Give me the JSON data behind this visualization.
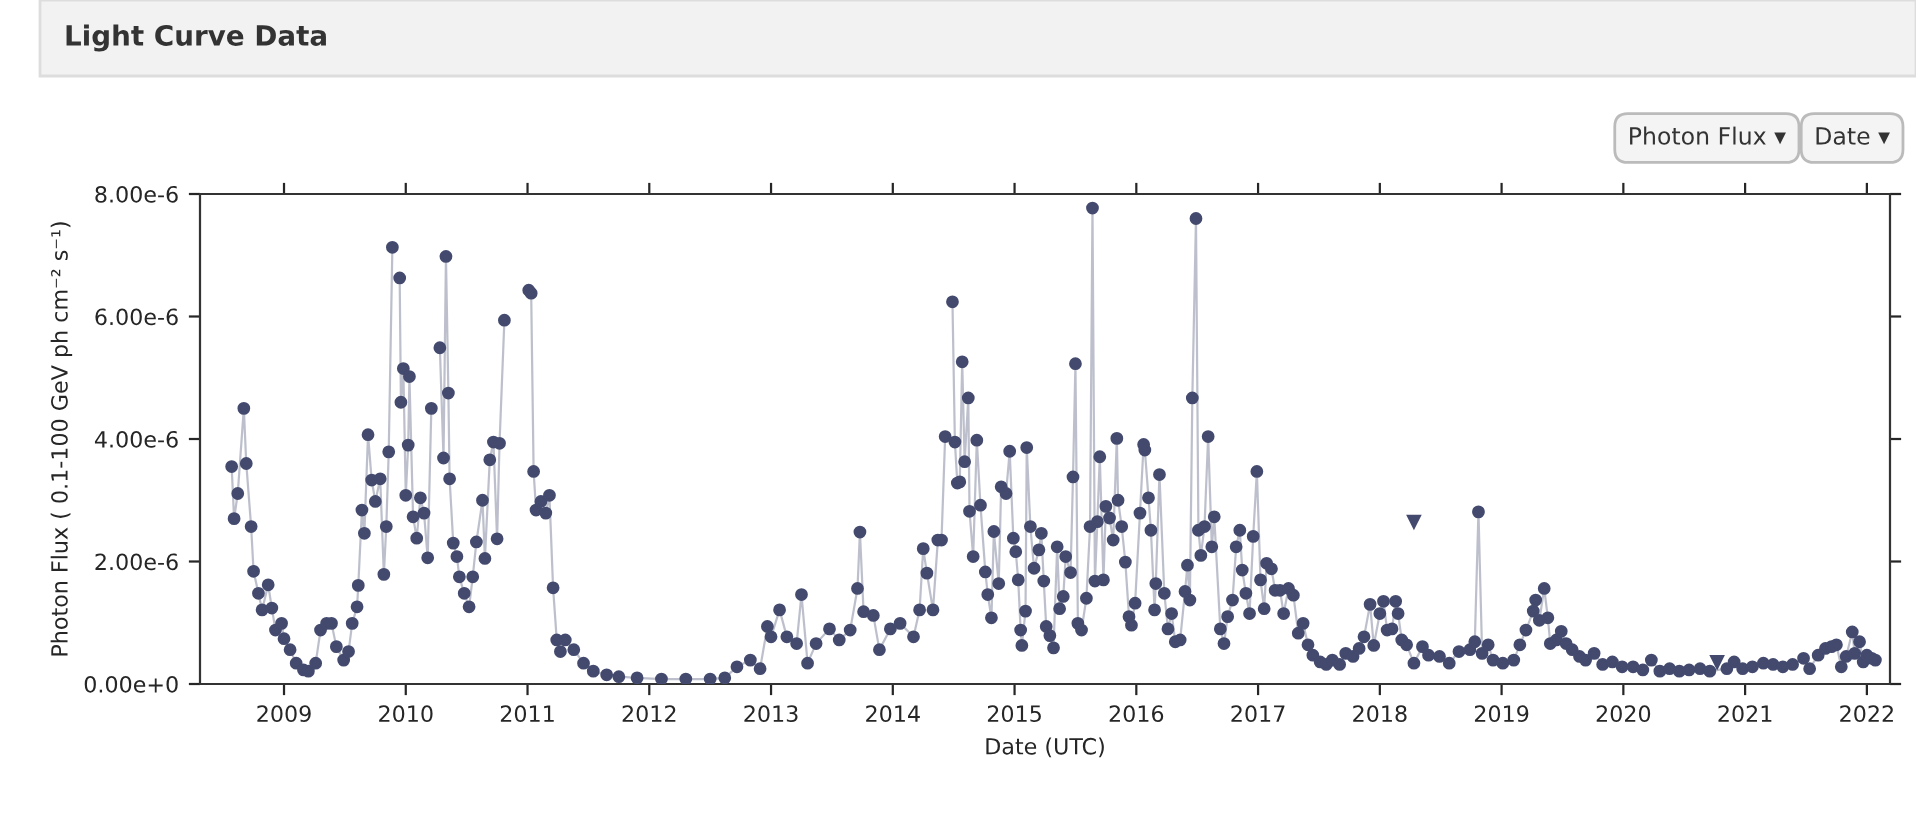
{
  "chart_data": {
    "type": "line",
    "title": "Light Curve Data",
    "xlabel": "Date (UTC)",
    "ylabel": "Photon Flux ( 0.1-100 GeV ph cm⁻² s⁻¹)",
    "annotations": [
      "Photon Flux ▾",
      "Date ▾"
    ],
    "xlim": [
      2008.31,
      2022.19
    ],
    "xticks": [
      2009,
      2010,
      2011,
      2012,
      2013,
      2014,
      2015,
      2016,
      2017,
      2018,
      2019,
      2020,
      2021,
      2022
    ],
    "ylim": [
      0,
      8e-06
    ],
    "yticks": [
      {
        "value": 0,
        "label": "0.00e+0"
      },
      {
        "value": 2e-06,
        "label": "2.00e-6"
      },
      {
        "value": 4e-06,
        "label": "4.00e-6"
      },
      {
        "value": 6e-06,
        "label": "6.00e-6"
      },
      {
        "value": 8e-06,
        "label": "8.00e-6"
      }
    ],
    "grid": false,
    "legend": false,
    "marker": "circle",
    "line_style": "solid",
    "series": [
      {
        "color": "#434a6e",
        "x": [
          2008.57,
          2008.59,
          2008.62,
          2008.67,
          2008.69,
          2008.73,
          2008.75,
          2008.79,
          2008.82,
          2008.87,
          2008.9,
          2008.93,
          2008.98,
          2009.0,
          2009.05,
          2009.1,
          2009.16,
          2009.2,
          2009.26,
          2009.3,
          2009.35,
          2009.39,
          2009.43,
          2009.49,
          2009.53,
          2009.56,
          2009.6,
          2009.61,
          2009.64,
          2009.66,
          2009.69,
          2009.72,
          2009.75,
          2009.79,
          2009.82,
          2009.84,
          2009.86,
          2009.89,
          2009.92,
          2009.95,
          2009.96,
          2009.98,
          2010.0,
          2010.02,
          2010.03,
          2010.06,
          2010.09,
          2010.12,
          2010.15,
          2010.18,
          2010.21,
          2010.24,
          2010.28,
          2010.31,
          2010.33,
          2010.35,
          2010.36,
          2010.39,
          2010.42,
          2010.44,
          2010.48,
          2010.52,
          2010.55,
          2010.58,
          2010.63,
          2010.65,
          2010.69,
          2010.72,
          2010.75,
          2010.77,
          2010.81,
          2010.83,
          2011.01,
          2011.03,
          2011.05,
          2011.07,
          2011.11,
          2011.15,
          2011.18,
          2011.21,
          2011.24,
          2011.27,
          2011.31,
          2011.38,
          2011.46,
          2011.54,
          2011.65,
          2011.75,
          2011.9,
          2012.1,
          2012.3,
          2012.5,
          2012.62,
          2012.72,
          2012.83,
          2012.91,
          2012.97,
          2013.0,
          2013.07,
          2013.13,
          2013.21,
          2013.25,
          2013.3,
          2013.37,
          2013.48,
          2013.56,
          2013.65,
          2013.71,
          2013.73,
          2013.76,
          2013.84,
          2013.89,
          2013.98,
          2014.06,
          2014.17,
          2014.22,
          2014.25,
          2014.28,
          2014.33,
          2014.37,
          2014.4,
          2014.43,
          2014.45,
          2014.49,
          2014.51,
          2014.53,
          2014.55,
          2014.57,
          2014.59,
          2014.62,
          2014.63,
          2014.66,
          2014.69,
          2014.72,
          2014.76,
          2014.78,
          2014.81,
          2014.83,
          2014.87,
          2014.89,
          2014.93,
          2014.96,
          2014.99,
          2015.01,
          2015.03,
          2015.05,
          2015.06,
          2015.09,
          2015.1,
          2015.13,
          2015.16,
          2015.2,
          2015.22,
          2015.24,
          2015.26,
          2015.29,
          2015.32,
          2015.35,
          2015.37,
          2015.4,
          2015.42,
          2015.46,
          2015.48,
          2015.5,
          2015.52,
          2015.55,
          2015.59,
          2015.62,
          2015.64,
          2015.66,
          2015.68,
          2015.7,
          2015.73,
          2015.75,
          2015.78,
          2015.81,
          2015.84,
          2015.85,
          2015.88,
          2015.91,
          2015.94,
          2015.96,
          2015.99,
          2016.03,
          2016.06,
          2016.07,
          2016.1,
          2016.12,
          2016.15,
          2016.16,
          2016.19,
          2016.23,
          2016.26,
          2016.29,
          2016.32,
          2016.36,
          2016.4,
          2016.42,
          2016.44,
          2016.46,
          2016.49,
          2016.51,
          2016.53,
          2016.56,
          2016.59,
          2016.62,
          2016.64,
          2016.69,
          2016.72,
          2016.75,
          2016.79,
          2016.82,
          2016.85,
          2016.87,
          2016.9,
          2016.93,
          2016.96,
          2016.99,
          2017.02,
          2017.05,
          2017.07,
          2017.11,
          2017.14,
          2017.18,
          2017.21,
          2017.25,
          2017.29,
          2017.33,
          2017.37,
          2017.41,
          2017.45,
          2017.51,
          2017.56,
          2017.61,
          2017.67,
          2017.72,
          2017.78,
          2017.83,
          2017.87,
          2017.92,
          2017.95,
          2018.0,
          2018.03,
          2018.06,
          2018.1,
          2018.13,
          2018.15,
          2018.18,
          2018.22,
          2018.28,
          2018.35,
          2018.4,
          2018.49,
          2018.57,
          2018.65,
          2018.74,
          2018.78,
          2018.81,
          2018.84,
          2018.89,
          2018.93,
          2019.01,
          2019.1,
          2019.15,
          2019.2,
          2019.26,
          2019.28,
          2019.31,
          2019.35,
          2019.38,
          2019.4,
          2019.45,
          2019.49,
          2019.53,
          2019.58,
          2019.64,
          2019.69,
          2019.76,
          2019.83,
          2019.91,
          2019.99,
          2020.08,
          2020.16,
          2020.23,
          2020.3,
          2020.38,
          2020.46,
          2020.54,
          2020.63,
          2020.71,
          2020.85,
          2020.91,
          2020.98,
          2021.06,
          2021.15,
          2021.23,
          2021.31,
          2021.39,
          2021.48,
          2021.53,
          2021.6,
          2021.66,
          2021.71,
          2021.75,
          2021.79,
          2021.83,
          2021.88,
          2021.9,
          2021.94,
          2021.97,
          2022.0,
          2022.04,
          2022.07
        ],
        "values": [
          3.55e-06,
          2.7e-06,
          3.11e-06,
          4.5e-06,
          3.6e-06,
          2.57e-06,
          1.84e-06,
          1.48e-06,
          1.21e-06,
          1.62e-06,
          1.24e-06,
          8.8e-07,
          9.9e-07,
          7.4e-07,
          5.6e-07,
          3.4e-07,
          2.3e-07,
          2.1e-07,
          3.4e-07,
          8.8e-07,
          9.9e-07,
          9.9e-07,
          6.1e-07,
          3.9e-07,
          5.3e-07,
          9.9e-07,
          1.26e-06,
          1.61e-06,
          2.84e-06,
          2.46e-06,
          4.07e-06,
          3.33e-06,
          2.98e-06,
          3.35e-06,
          1.79e-06,
          2.57e-06,
          3.79e-06,
          7.13e-06,
          null,
          6.63e-06,
          4.6e-06,
          5.15e-06,
          3.08e-06,
          3.9e-06,
          5.02e-06,
          2.73e-06,
          2.38e-06,
          3.04e-06,
          2.79e-06,
          2.06e-06,
          4.5e-06,
          null,
          5.49e-06,
          3.69e-06,
          6.98e-06,
          4.75e-06,
          3.35e-06,
          2.3e-06,
          2.08e-06,
          1.75e-06,
          1.48e-06,
          1.26e-06,
          1.75e-06,
          2.32e-06,
          3e-06,
          2.05e-06,
          3.66e-06,
          3.95e-06,
          2.37e-06,
          3.93e-06,
          5.94e-06,
          null,
          6.43e-06,
          6.38e-06,
          3.47e-06,
          2.84e-06,
          2.98e-06,
          2.79e-06,
          3.08e-06,
          1.57e-06,
          7.2e-07,
          5.3e-07,
          7.2e-07,
          5.6e-07,
          3.4e-07,
          2.1e-07,
          1.5e-07,
          1.2e-07,
          1e-07,
          8e-08,
          8e-08,
          8e-08,
          1e-07,
          2.8e-07,
          3.9e-07,
          2.5e-07,
          9.4e-07,
          7.7e-07,
          1.21e-06,
          7.7e-07,
          6.6e-07,
          1.46e-06,
          3.4e-07,
          6.6e-07,
          9e-07,
          7.2e-07,
          8.8e-07,
          1.56e-06,
          2.48e-06,
          1.18e-06,
          1.12e-06,
          5.6e-07,
          9e-07,
          9.9e-07,
          7.7e-07,
          1.21e-06,
          2.21e-06,
          1.81e-06,
          1.21e-06,
          2.35e-06,
          2.35e-06,
          4.04e-06,
          null,
          6.24e-06,
          3.95e-06,
          3.28e-06,
          3.3e-06,
          5.26e-06,
          3.63e-06,
          4.67e-06,
          2.82e-06,
          2.08e-06,
          3.98e-06,
          2.92e-06,
          1.83e-06,
          1.46e-06,
          1.08e-06,
          2.49e-06,
          1.64e-06,
          3.22e-06,
          3.11e-06,
          3.8e-06,
          2.38e-06,
          2.16e-06,
          1.7e-06,
          8.8e-07,
          6.3e-07,
          1.19e-06,
          3.86e-06,
          2.57e-06,
          1.89e-06,
          2.19e-06,
          2.46e-06,
          1.68e-06,
          9.4e-07,
          7.9e-07,
          5.9e-07,
          2.24e-06,
          1.23e-06,
          1.43e-06,
          2.08e-06,
          1.82e-06,
          3.38e-06,
          5.23e-06,
          9.9e-07,
          8.8e-07,
          1.4e-06,
          2.57e-06,
          7.77e-06,
          1.68e-06,
          2.65e-06,
          3.71e-06,
          1.7e-06,
          2.9e-06,
          2.71e-06,
          2.35e-06,
          4.01e-06,
          3e-06,
          2.57e-06,
          1.99e-06,
          1.1e-06,
          9.6e-07,
          1.32e-06,
          2.79e-06,
          3.91e-06,
          3.82e-06,
          3.04e-06,
          2.51e-06,
          1.21e-06,
          1.64e-06,
          3.42e-06,
          1.48e-06,
          9e-07,
          1.15e-06,
          6.9e-07,
          7.2e-07,
          1.51e-06,
          1.94e-06,
          1.37e-06,
          4.67e-06,
          7.6e-06,
          2.51e-06,
          2.1e-06,
          2.57e-06,
          4.04e-06,
          2.24e-06,
          2.73e-06,
          9e-07,
          6.6e-07,
          1.1e-06,
          1.37e-06,
          2.24e-06,
          2.51e-06,
          1.86e-06,
          1.48e-06,
          1.15e-06,
          2.41e-06,
          3.47e-06,
          1.7e-06,
          1.23e-06,
          1.97e-06,
          1.88e-06,
          1.53e-06,
          1.53e-06,
          1.15e-06,
          1.56e-06,
          1.45e-06,
          8.3e-07,
          9.9e-07,
          6.4e-07,
          4.7e-07,
          3.6e-07,
          3.2e-07,
          3.9e-07,
          3.2e-07,
          5e-07,
          4.5e-07,
          5.8e-07,
          7.7e-07,
          1.3e-06,
          6.3e-07,
          1.15e-06,
          1.35e-06,
          8.8e-07,
          9e-07,
          1.35e-06,
          1.15e-06,
          7.2e-07,
          6.4e-07,
          3.4e-07,
          6.1e-07,
          4.7e-07,
          4.5e-07,
          3.4e-07,
          5.3e-07,
          5.6e-07,
          6.9e-07,
          2.81e-06,
          5e-07,
          6.4e-07,
          3.9e-07,
          3.4e-07,
          3.9e-07,
          6.4e-07,
          8.8e-07,
          1.19e-06,
          1.37e-06,
          1.04e-06,
          1.56e-06,
          1.08e-06,
          6.6e-07,
          7.2e-07,
          8.6e-07,
          6.6e-07,
          5.6e-07,
          4.5e-07,
          3.9e-07,
          5e-07,
          3.2e-07,
          3.6e-07,
          2.8e-07,
          2.8e-07,
          2.3e-07,
          3.9e-07,
          2.1e-07,
          2.5e-07,
          2.1e-07,
          2.3e-07,
          2.5e-07,
          2.1e-07,
          2.5e-07,
          3.6e-07,
          2.5e-07,
          2.8e-07,
          3.4e-07,
          3.2e-07,
          2.8e-07,
          3.2e-07,
          4.2e-07,
          2.5e-07,
          4.7e-07,
          5.8e-07,
          6.1e-07,
          6.4e-07,
          2.8e-07,
          4.5e-07,
          8.5e-07,
          5e-07,
          6.9e-07,
          3.6e-07,
          4.7e-07,
          4.2e-07,
          3.9e-07
        ]
      },
      {
        "color": "#434a6e",
        "type": "scatter",
        "marker": "triangle",
        "x": [
          2018.28,
          2020.77
        ],
        "values": [
          2.65e-06,
          3.6e-07
        ]
      }
    ]
  }
}
